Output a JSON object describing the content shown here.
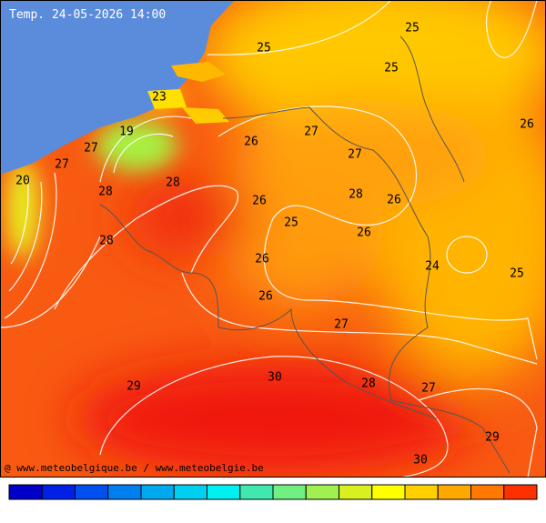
{
  "header": {
    "title": "Temp. 24-05-2026 14:00"
  },
  "map": {
    "labels": [
      25,
      25,
      25,
      23,
      19,
      27,
      27,
      26,
      27,
      27,
      26,
      20,
      28,
      28,
      26,
      28,
      26,
      25,
      26,
      28,
      26,
      24,
      25,
      26,
      27,
      30,
      29,
      28,
      27,
      29,
      30
    ]
  },
  "footer": {
    "credit": "@ www.meteobelgique.be / www.meteobelgie.be"
  },
  "scale": {
    "colors": [
      "#0000c8",
      "#0020e8",
      "#0050f0",
      "#0080f0",
      "#00a8f0",
      "#00d0f0",
      "#00f0f0",
      "#40e8b0",
      "#70f080",
      "#a0f050",
      "#d8f020",
      "#ffff00",
      "#ffd000",
      "#ffa800",
      "#ff7800",
      "#ff3000"
    ]
  }
}
